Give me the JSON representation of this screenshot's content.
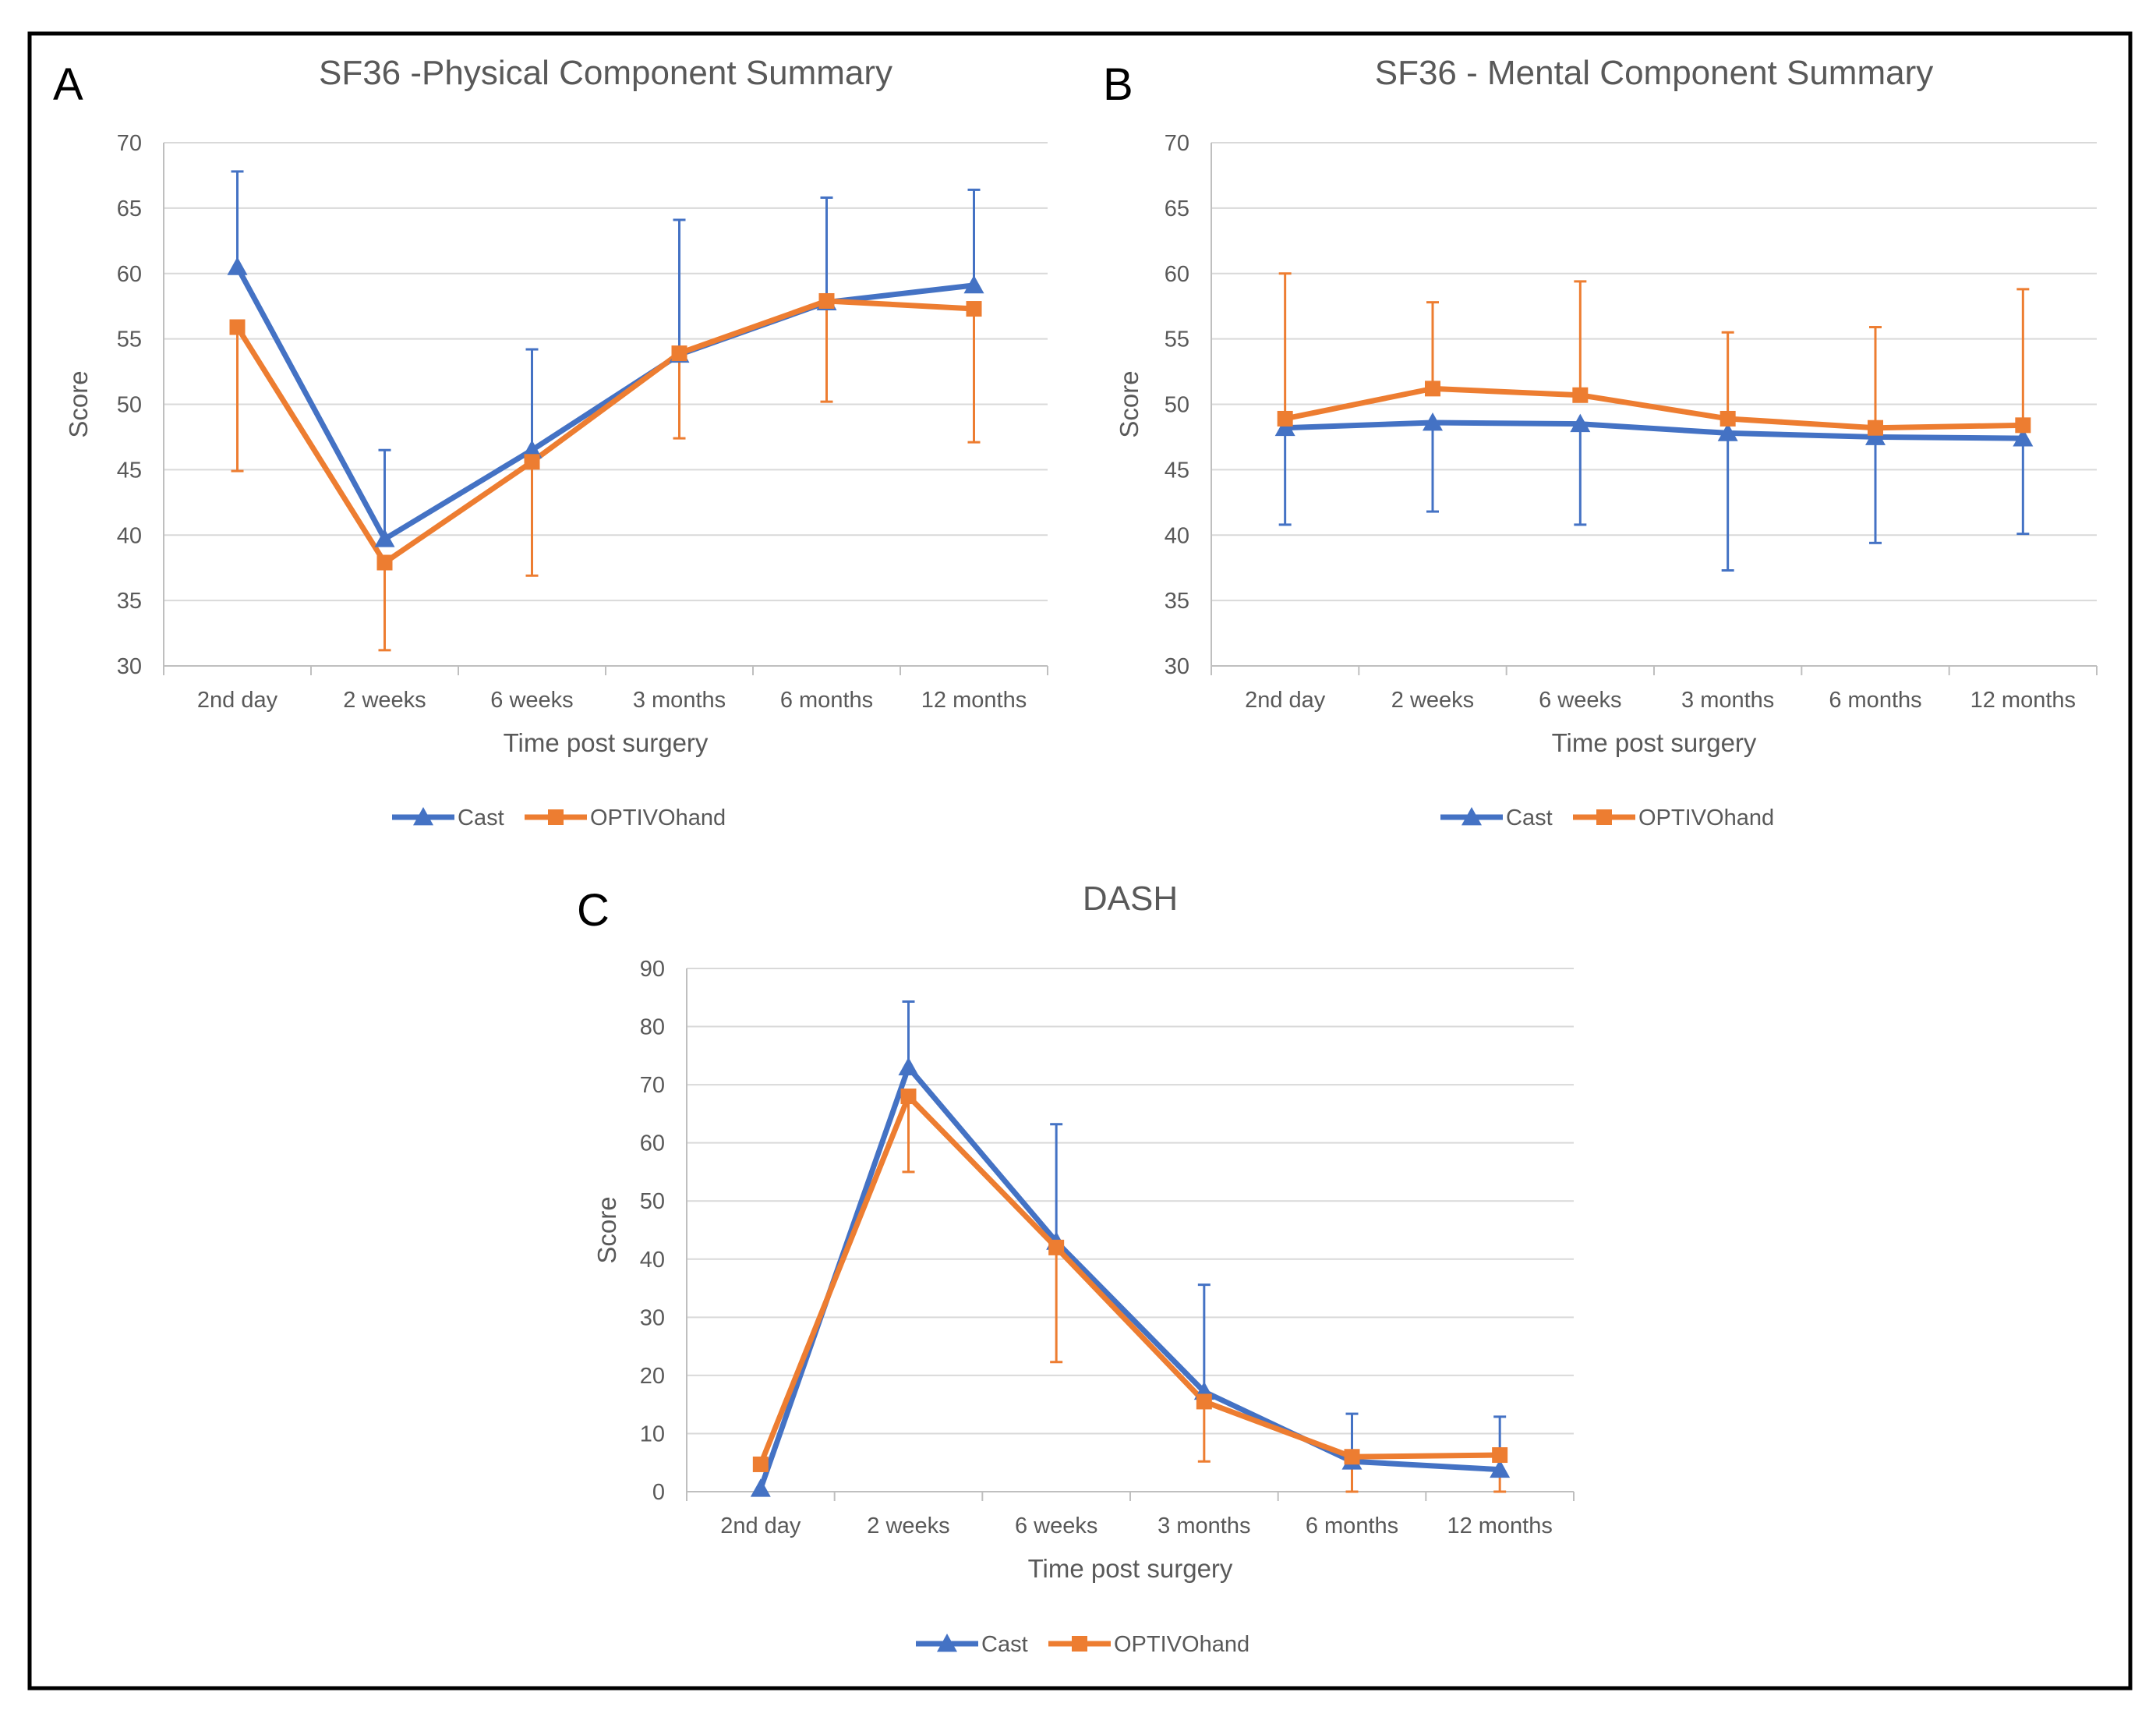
{
  "colors": {
    "cast": "#4472C4",
    "optivo": "#ED7D31"
  },
  "legend": {
    "series": [
      "Cast",
      "OPTIVOhand"
    ]
  },
  "chart_data": [
    {
      "panel": "A",
      "type": "line",
      "title": "SF36 -Physical Component Summary",
      "xlabel": "Time post surgery",
      "ylabel": "Score",
      "ylim": [
        30,
        70
      ],
      "ytick_step": 5,
      "categories": [
        "2nd day",
        "2 weeks",
        "6 weeks",
        "3 months",
        "6 months",
        "12 months"
      ],
      "series": [
        {
          "name": "Cast",
          "values": [
            60.5,
            39.7,
            46.5,
            53.8,
            57.8,
            59.1
          ],
          "err_dir": "up",
          "err_top": [
            67.8,
            46.5,
            54.2,
            64.1,
            65.8,
            66.4
          ]
        },
        {
          "name": "OPTIVOhand",
          "values": [
            55.9,
            37.9,
            45.6,
            53.9,
            57.9,
            57.3
          ],
          "err_dir": "down",
          "err_bottom": [
            44.9,
            31.2,
            36.9,
            47.4,
            50.2,
            47.1
          ]
        }
      ]
    },
    {
      "panel": "B",
      "type": "line",
      "title": "SF36 - Mental Component Summary",
      "xlabel": "Time post surgery",
      "ylabel": "Score",
      "ylim": [
        30,
        70
      ],
      "ytick_step": 5,
      "categories": [
        "2nd day",
        "2 weeks",
        "6 weeks",
        "3 months",
        "6 months",
        "12 months"
      ],
      "series": [
        {
          "name": "Cast",
          "values": [
            48.2,
            48.6,
            48.5,
            47.8,
            47.5,
            47.4
          ],
          "err_dir": "down",
          "err_bottom": [
            40.8,
            41.8,
            40.8,
            37.3,
            39.4,
            40.1
          ]
        },
        {
          "name": "OPTIVOhand",
          "values": [
            48.9,
            51.2,
            50.7,
            48.9,
            48.2,
            48.4
          ],
          "err_dir": "up",
          "err_top": [
            60.0,
            57.8,
            59.4,
            55.5,
            55.9,
            58.8
          ]
        }
      ]
    },
    {
      "panel": "C",
      "type": "line",
      "title": "DASH",
      "xlabel": "Time post surgery",
      "ylabel": "Score",
      "ylim": [
        0,
        90
      ],
      "ytick_step": 10,
      "categories": [
        "2nd day",
        "2 weeks",
        "6 weeks",
        "3 months",
        "6 months",
        "12 months"
      ],
      "series": [
        {
          "name": "Cast",
          "values": [
            0.5,
            73.0,
            43.0,
            17.2,
            5.2,
            3.8
          ],
          "err_dir": "up",
          "err_top": [
            null,
            84.3,
            63.2,
            35.6,
            13.4,
            12.9
          ]
        },
        {
          "name": "OPTIVOhand",
          "values": [
            4.7,
            68.0,
            42.0,
            15.5,
            6.0,
            6.3
          ],
          "err_dir": "down",
          "err_bottom": [
            null,
            55.0,
            22.3,
            5.2,
            0.0,
            0.0
          ]
        }
      ]
    }
  ]
}
